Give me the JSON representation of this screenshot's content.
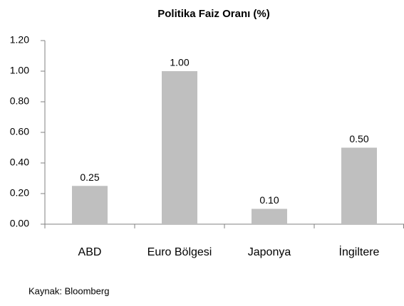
{
  "chart_data": {
    "type": "bar",
    "title": "Politika Faiz Oranı (%)",
    "categories": [
      "ABD",
      "Euro Bölgesi",
      "Japonya",
      "İngiltere"
    ],
    "values": [
      0.25,
      1.0,
      0.1,
      0.5
    ],
    "value_labels": [
      "0.25",
      "1.00",
      "0.10",
      "0.50"
    ],
    "color": "#bfbfbf",
    "ylim": [
      0,
      1.2
    ],
    "yticks": [
      {
        "value": 0,
        "label": "0.00"
      },
      {
        "value": 0.2,
        "label": "0.20"
      },
      {
        "value": 0.4,
        "label": "0.40"
      },
      {
        "value": 0.6,
        "label": "0.60"
      },
      {
        "value": 0.8,
        "label": "0.80"
      },
      {
        "value": 1.0,
        "label": "1.00"
      },
      {
        "value": 1.2,
        "label": "1.20"
      }
    ],
    "grid": false,
    "source": "Kaynak: Bloomberg"
  }
}
